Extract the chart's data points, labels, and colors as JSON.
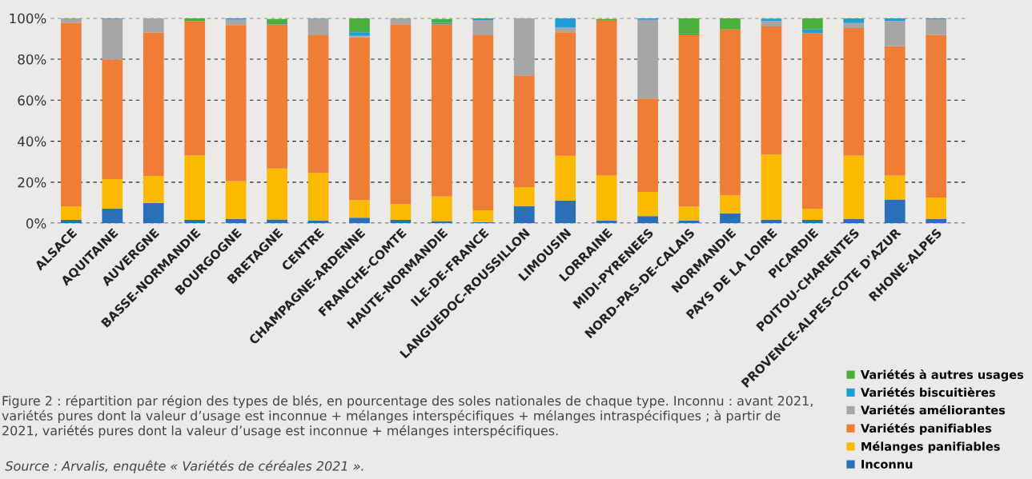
{
  "chart_data": {
    "type": "bar",
    "stacked": true,
    "categories": [
      "ALSACE",
      "AQUITAINE",
      "AUVERGNE",
      "BASSE-NORMANDIE",
      "BOURGOGNE",
      "BRETAGNE",
      "CENTRE",
      "CHAMPAGNE-ARDENNE",
      "FRANCHE-COMTE",
      "HAUTE-NORMANDIE",
      "ILE-DE-FRANCE",
      "LANGUEDOC-ROUSSILLON",
      "LIMOUSIN",
      "LORRAINE",
      "MIDI-PYRENEES",
      "NORD-PAS-DE-CALAIS",
      "NORMANDIE",
      "PAYS DE LA LOIRE",
      "PICARDIE",
      "POITOU-CHARENTES",
      "PROVENCE-ALPES-COTE D'AZUR",
      "RHONE-ALPES"
    ],
    "series": [
      {
        "name": "Inconnu",
        "color": "#2970b8",
        "values": [
          1.6,
          7.2,
          9.9,
          1.6,
          2.0,
          1.8,
          1.2,
          2.7,
          1.6,
          1.0,
          0.5,
          8.3,
          11.1,
          1.3,
          3.5,
          1.2,
          4.8,
          1.7,
          1.6,
          2.1,
          11.6,
          2.1
        ]
      },
      {
        "name": "Mélanges panifiables",
        "color": "#fbb900",
        "values": [
          6.6,
          14.3,
          13.2,
          31.5,
          18.5,
          24.9,
          23.3,
          8.6,
          7.7,
          12.0,
          5.8,
          9.3,
          21.8,
          22.0,
          11.8,
          6.9,
          8.8,
          31.8,
          5.4,
          30.9,
          11.7,
          10.4
        ]
      },
      {
        "name": "Variétés panifiables",
        "color": "#f07d35",
        "values": [
          89.6,
          58.4,
          70.0,
          65.5,
          76.2,
          70.4,
          67.2,
          79.4,
          87.8,
          84.1,
          85.4,
          54.5,
          60.3,
          75.8,
          45.5,
          83.6,
          80.9,
          62.5,
          85.8,
          62.2,
          63.1,
          79.4
        ]
      },
      {
        "name": "Variétés améliorantes",
        "color": "#a6a6a6",
        "values": [
          1.9,
          19.7,
          6.9,
          0,
          2.6,
          null,
          8.0,
          0.7,
          2.6,
          null,
          7.4,
          27.9,
          2.2,
          null,
          38.4,
          0,
          0,
          2.6,
          0,
          2.5,
          12.2,
          7.6
        ]
      },
      {
        "name": "Variétés biscuitières",
        "color": "#1e9ed9",
        "values": [
          0,
          0.4,
          null,
          0,
          0.7,
          0.5,
          0.3,
          1.8,
          0,
          0.7,
          0.4,
          0,
          4.6,
          0,
          0.8,
          0.5,
          0,
          1.1,
          1.7,
          1.8,
          1.4,
          0.5
        ]
      },
      {
        "name": "Variétés à autres usages",
        "color": "#4caf3c",
        "values": [
          0.3,
          0,
          0,
          1.4,
          0,
          2.0,
          0,
          6.8,
          0.3,
          1.8,
          0.5,
          0,
          0,
          0.5,
          0,
          7.8,
          5.5,
          0.3,
          5.5,
          0.5,
          0,
          0
        ]
      }
    ],
    "ylim": [
      0,
      100
    ],
    "yticks": [
      {
        "value": 0,
        "label": "0%"
      },
      {
        "value": 20,
        "label": "20%"
      },
      {
        "value": 40,
        "label": "40%"
      },
      {
        "value": 60,
        "label": "60%"
      },
      {
        "value": 80,
        "label": "80%"
      },
      {
        "value": 100,
        "label": "100%"
      }
    ],
    "grid": "y",
    "legend": "bottom right",
    "annotations": [
      "Figure 2 : répartition par région des types de blés, en pourcentage des soles nationales de chaque type. Inconnu : avant 2021, variétés pures dont la valeur d’usage est inconnue + mélanges interspécifiques + mélanges intraspécifiques ; à partir de 2021, variétés pures dont la valeur d’usage est inconnue + mélanges interspécifiques.",
      "Source : Arvalis, enquête « Variétés de céréales 2021 »."
    ]
  }
}
